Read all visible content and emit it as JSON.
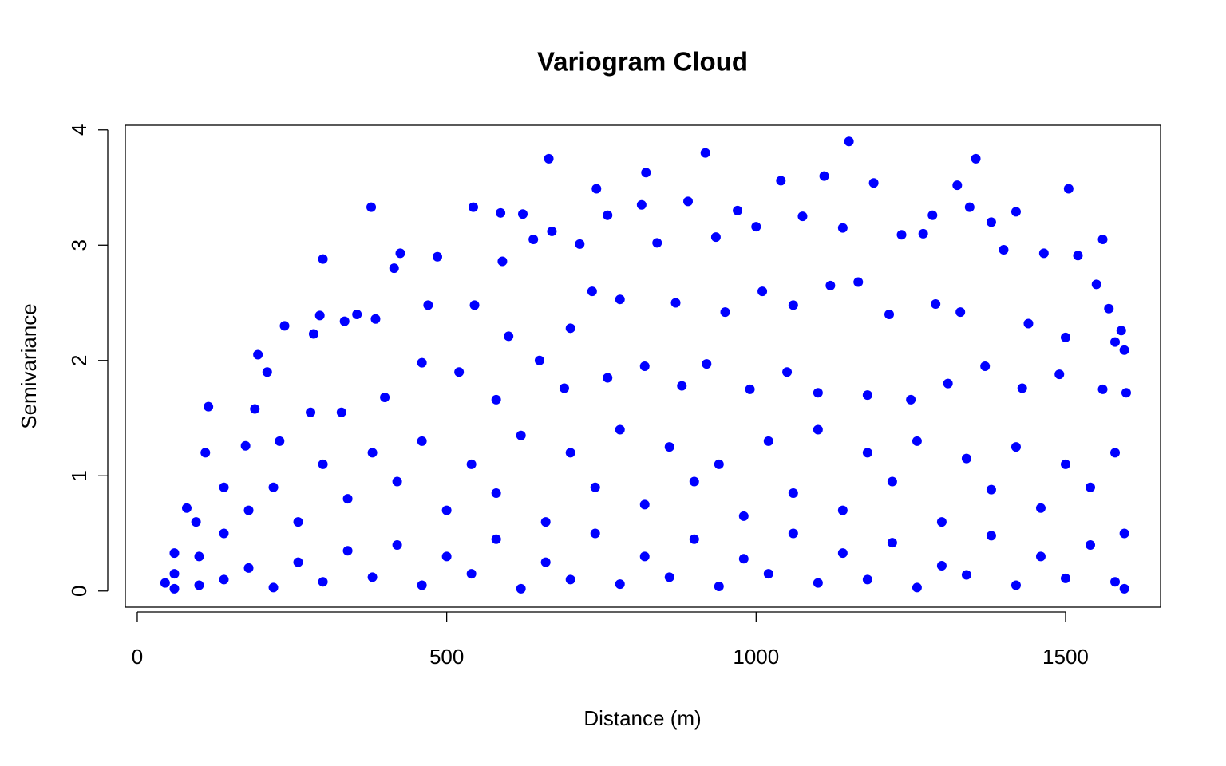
{
  "chart_data": {
    "type": "scatter",
    "title": "Variogram Cloud",
    "x_label": "Distance (m)",
    "y_label": "Semivariance",
    "color": "#0000ff",
    "x": [
      665,
      918,
      1150,
      1355,
      822,
      378,
      543,
      587,
      623,
      742,
      760,
      815,
      890,
      970,
      1040,
      1110,
      1190,
      1325,
      1505,
      1345,
      1420,
      1285,
      670,
      715,
      300,
      415,
      425,
      485,
      590,
      640,
      840,
      935,
      1000,
      1075,
      1140,
      1235,
      1270,
      1380,
      1400,
      1465,
      1520,
      1560,
      1550,
      1570,
      1590,
      1595,
      238,
      195,
      210,
      285,
      295,
      355,
      385,
      335,
      470,
      545,
      600,
      700,
      735,
      780,
      870,
      950,
      1010,
      1060,
      1120,
      1165,
      1215,
      1290,
      1330,
      1440,
      1500,
      1580,
      115,
      190,
      175,
      230,
      280,
      330,
      110,
      140,
      80,
      95,
      60,
      45,
      400,
      460,
      520,
      580,
      650,
      690,
      760,
      820,
      880,
      920,
      990,
      1050,
      1100,
      1180,
      1250,
      1310,
      1370,
      1430,
      1490,
      1560,
      1598,
      60,
      60,
      100,
      100,
      140,
      140,
      180,
      180,
      220,
      220,
      260,
      260,
      300,
      300,
      340,
      340,
      380,
      380,
      420,
      420,
      460,
      460,
      500,
      500,
      540,
      540,
      580,
      580,
      620,
      620,
      660,
      660,
      700,
      700,
      740,
      740,
      780,
      780,
      820,
      820,
      860,
      860,
      900,
      900,
      940,
      940,
      980,
      980,
      1020,
      1020,
      1060,
      1060,
      1100,
      1100,
      1140,
      1140,
      1180,
      1180,
      1220,
      1220,
      1260,
      1260,
      1300,
      1300,
      1340,
      1340,
      1380,
      1380,
      1420,
      1420,
      1460,
      1460,
      1500,
      1500,
      1540,
      1540,
      1580,
      1580,
      1595,
      1595
    ],
    "values": [
      3.75,
      3.8,
      3.9,
      3.75,
      3.63,
      3.33,
      3.33,
      3.28,
      3.27,
      3.49,
      3.26,
      3.35,
      3.38,
      3.3,
      3.56,
      3.6,
      3.54,
      3.52,
      3.49,
      3.33,
      3.29,
      3.26,
      3.12,
      3.01,
      2.88,
      2.8,
      2.93,
      2.9,
      2.86,
      3.05,
      3.02,
      3.07,
      3.16,
      3.25,
      3.15,
      3.09,
      3.1,
      3.2,
      2.96,
      2.93,
      2.91,
      3.05,
      2.66,
      2.45,
      2.26,
      2.09,
      2.3,
      2.05,
      1.9,
      2.23,
      2.39,
      2.4,
      2.36,
      2.34,
      2.48,
      2.48,
      2.21,
      2.28,
      2.6,
      2.53,
      2.5,
      2.42,
      2.6,
      2.48,
      2.65,
      2.68,
      2.4,
      2.49,
      2.42,
      2.32,
      2.2,
      2.16,
      1.6,
      1.58,
      1.26,
      1.3,
      1.55,
      1.55,
      1.2,
      0.9,
      0.72,
      0.6,
      0.33,
      0.07,
      1.68,
      1.98,
      1.9,
      1.66,
      2.0,
      1.76,
      1.85,
      1.95,
      1.78,
      1.97,
      1.75,
      1.9,
      1.72,
      1.7,
      1.66,
      1.8,
      1.95,
      1.76,
      1.88,
      1.75,
      1.72,
      0.02,
      0.15,
      0.3,
      0.05,
      0.5,
      0.1,
      0.7,
      0.2,
      0.9,
      0.03,
      0.6,
      0.25,
      1.1,
      0.08,
      0.8,
      0.35,
      1.2,
      0.12,
      0.95,
      0.4,
      1.3,
      0.05,
      0.7,
      0.3,
      1.1,
      0.15,
      0.85,
      0.45,
      1.35,
      0.02,
      0.6,
      0.25,
      1.2,
      0.1,
      0.9,
      0.5,
      1.4,
      0.06,
      0.75,
      0.3,
      1.25,
      0.12,
      0.95,
      0.45,
      1.1,
      0.04,
      0.65,
      0.28,
      1.3,
      0.15,
      0.85,
      0.5,
      1.4,
      0.07,
      0.7,
      0.33,
      1.2,
      0.1,
      0.95,
      0.42,
      1.3,
      0.03,
      0.6,
      0.22,
      1.15,
      0.14,
      0.88,
      0.48,
      1.25,
      0.05,
      0.72,
      0.3,
      1.1,
      0.11,
      0.9,
      0.4,
      1.2,
      0.08,
      0.5,
      0.02
    ],
    "xlim": [
      -19.3,
      1653.5
    ],
    "ylim": [
      -0.14,
      4.04
    ],
    "xticks": [
      0,
      500,
      1000,
      1500
    ],
    "yticks": [
      0,
      1,
      2,
      3,
      4
    ],
    "grid": false
  }
}
